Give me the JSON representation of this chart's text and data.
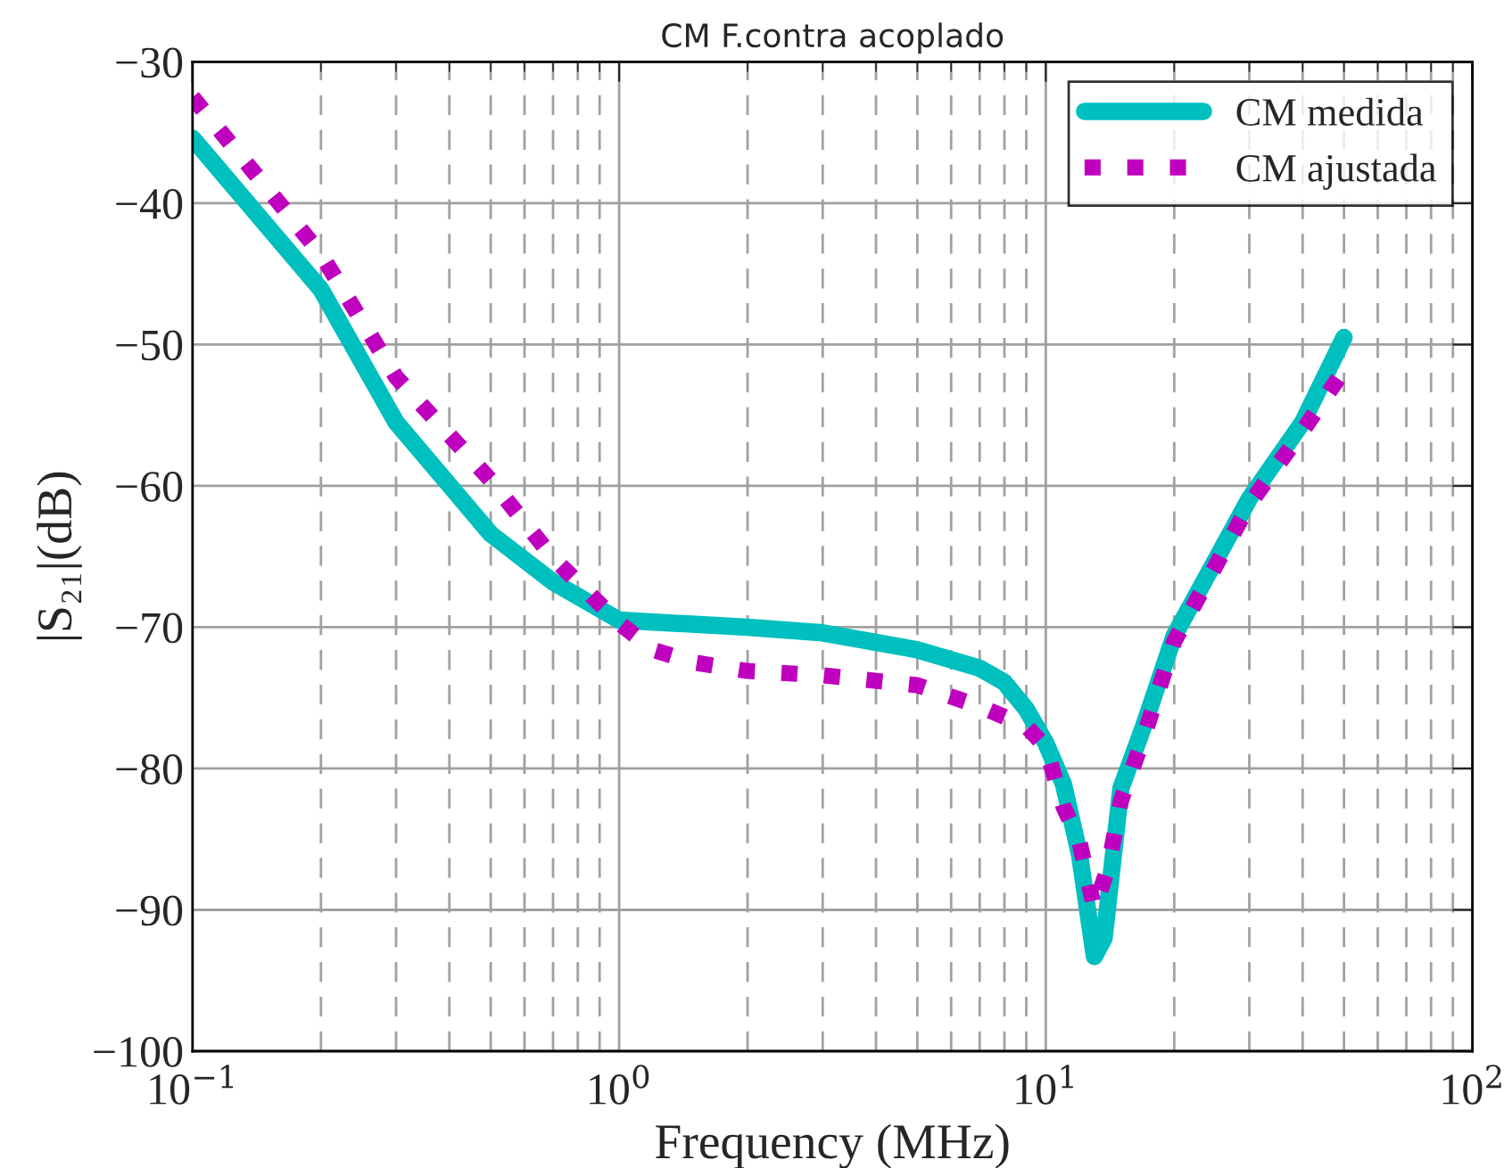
{
  "chart_data": {
    "type": "line",
    "title": "CM F.contra acoplado",
    "xlabel": "Frequency (MHz)",
    "ylabel": "|S₂₁|(dB)",
    "log": "x",
    "grid": true,
    "legend": "top right",
    "xlim": [
      0.1,
      100
    ],
    "xticks": [
      {
        "value": 0.1,
        "label": "10$^{−1}$"
      },
      {
        "value": 1,
        "label": "10$^{0}$"
      },
      {
        "value": 10,
        "label": "10$^{1}$"
      },
      {
        "value": 100,
        "label": "10$^{2}$"
      }
    ],
    "ylim": [
      -100,
      -30
    ],
    "yticks": [
      -100,
      -90,
      -80,
      -70,
      -60,
      -50,
      -40,
      -30
    ],
    "series": [
      {
        "name": "CM medida",
        "color": "#00bfbf",
        "line_style": "solid",
        "x": [
          0.1,
          0.2,
          0.3,
          0.5,
          0.7,
          1.0,
          2,
          3,
          5,
          7,
          8,
          9,
          10,
          11,
          12,
          13,
          13.7,
          15,
          17,
          20,
          30,
          40,
          50
        ],
        "values": [
          -35.4,
          -46.1,
          -55.5,
          -63.4,
          -66.8,
          -69.5,
          -70.0,
          -70.4,
          -71.6,
          -72.9,
          -73.9,
          -75.8,
          -78.2,
          -81.1,
          -86.1,
          -93.3,
          -92.0,
          -81.4,
          -76.9,
          -70.6,
          -60.9,
          -55.5,
          -49.5
        ]
      },
      {
        "name": "CM ajustada",
        "color": "#bf00bf",
        "line_style": "dotted",
        "x": [
          0.1,
          0.2,
          0.3,
          0.5,
          0.7,
          1.0,
          1.2,
          1.5,
          2,
          3,
          5,
          7,
          9,
          10,
          11,
          12,
          13,
          14,
          15,
          17,
          20,
          30,
          40,
          50
        ],
        "values": [
          -32.5,
          -43.6,
          -52.3,
          -59.6,
          -65.1,
          -69.7,
          -71.6,
          -72.5,
          -73.1,
          -73.4,
          -74.1,
          -75.6,
          -77.0,
          -78.5,
          -82.7,
          -85.2,
          -89.9,
          -87.0,
          -82.3,
          -77.7,
          -71.0,
          -61.3,
          -56.1,
          -51.8
        ]
      }
    ]
  }
}
